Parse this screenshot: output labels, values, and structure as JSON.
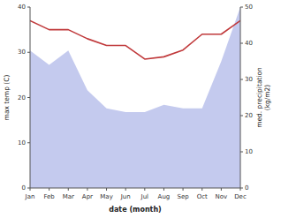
{
  "chart_data": {
    "type": "line",
    "xlabel": "date (month)",
    "ylabel": "max temp (C)",
    "y2label": "med. precipitation\n(kg/m2)",
    "categories": [
      "Jan",
      "Feb",
      "Mar",
      "Apr",
      "May",
      "Jun",
      "Jul",
      "Aug",
      "Sep",
      "Oct",
      "Nov",
      "Dec"
    ],
    "series": [
      {
        "type": "area",
        "color": "#b0b8e8",
        "axis": "y2",
        "values": [
          38,
          34,
          38,
          27,
          22,
          21,
          21,
          23,
          22,
          22,
          35,
          50
        ]
      },
      {
        "type": "line",
        "color": "#c0393b",
        "values": [
          37,
          35,
          35,
          33,
          31.5,
          31.5,
          28.5,
          29,
          30.5,
          34,
          34,
          37
        ]
      }
    ],
    "ylim": [
      0,
      40
    ],
    "yticks": [
      0,
      10,
      20,
      30,
      40
    ],
    "y2lim": [
      0,
      50
    ],
    "y2ticks": [
      0,
      10,
      20,
      30,
      40,
      50
    ],
    "grid": false
  }
}
